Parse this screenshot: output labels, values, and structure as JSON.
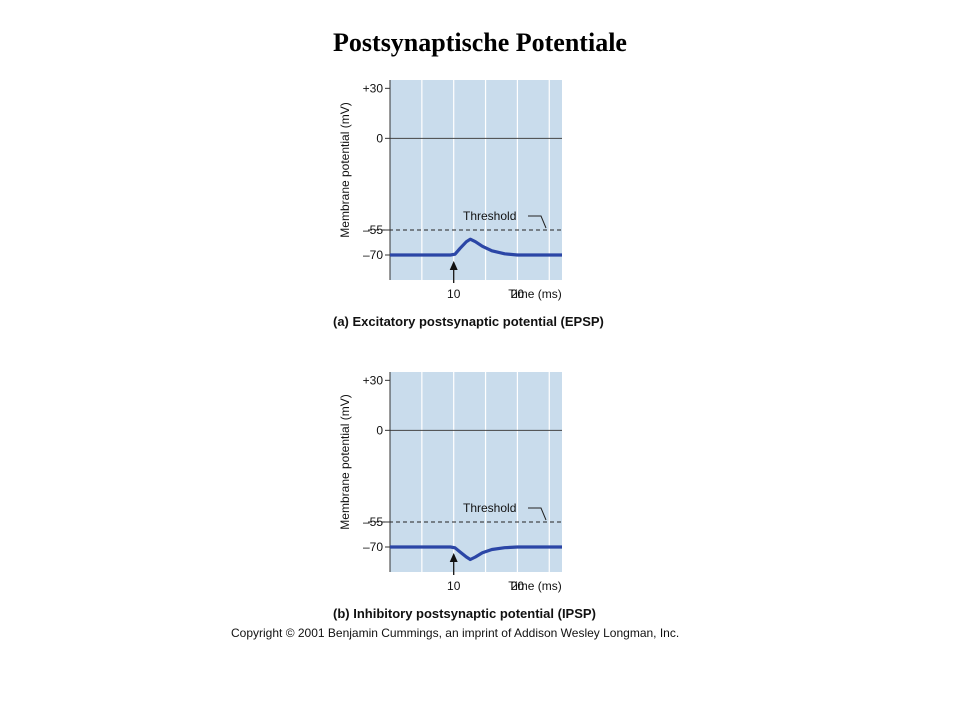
{
  "title": "Postsynaptische Potentiale",
  "copyright": "Copyright © 2001 Benjamin Cummings, an imprint of Addison Wesley Longman, Inc.",
  "colors": {
    "plot_background": "#c9dcec",
    "grid": "#ffffff",
    "trace": "#2b46a6"
  },
  "chart_data": [
    {
      "type": "line",
      "caption": "(a) Excitatory postsynaptic potential (EPSP)",
      "ylabel": "Membrane potential (mV)",
      "xlabel": "Time (ms)",
      "xlim": [
        0,
        27
      ],
      "ylim": [
        -85,
        35
      ],
      "yticks": [
        {
          "value": 30,
          "label": "+30"
        },
        {
          "value": 0,
          "label": "0"
        },
        {
          "value": -55,
          "label": "–55"
        },
        {
          "value": -70,
          "label": "–70"
        }
      ],
      "xticks": [
        {
          "value": 10,
          "label": "10"
        },
        {
          "value": 20,
          "label": "20"
        }
      ],
      "x_gridlines": [
        5,
        10,
        15,
        20,
        25
      ],
      "zero_line": 0,
      "threshold": {
        "value": -55,
        "label": "Threshold"
      },
      "stimulus_time": 10,
      "series": [
        {
          "x": [
            0,
            9.5,
            10.2,
            11,
            12,
            12.6,
            13.4,
            14.5,
            16,
            18,
            20,
            23,
            27
          ],
          "values": [
            -70,
            -70,
            -69.5,
            -66,
            -62,
            -60.5,
            -62,
            -64.8,
            -67.5,
            -69.3,
            -70,
            -70,
            -70
          ]
        }
      ]
    },
    {
      "type": "line",
      "caption": "(b) Inhibitory postsynaptic potential (IPSP)",
      "ylabel": "Membrane potential (mV)",
      "xlabel": "Time (ms)",
      "xlim": [
        0,
        27
      ],
      "ylim": [
        -85,
        35
      ],
      "yticks": [
        {
          "value": 30,
          "label": "+30"
        },
        {
          "value": 0,
          "label": "0"
        },
        {
          "value": -55,
          "label": "–55"
        },
        {
          "value": -70,
          "label": "–70"
        }
      ],
      "xticks": [
        {
          "value": 10,
          "label": "10"
        },
        {
          "value": 20,
          "label": "20"
        }
      ],
      "x_gridlines": [
        5,
        10,
        15,
        20,
        25
      ],
      "zero_line": 0,
      "threshold": {
        "value": -55,
        "label": "Threshold"
      },
      "stimulus_time": 10,
      "series": [
        {
          "x": [
            0,
            9.5,
            10.2,
            11,
            12,
            12.6,
            13.4,
            14.5,
            16,
            18,
            20,
            23,
            27
          ],
          "values": [
            -70,
            -70,
            -70.5,
            -73,
            -76,
            -77.5,
            -76,
            -73.5,
            -71.5,
            -70.4,
            -70,
            -70,
            -70
          ]
        }
      ]
    }
  ]
}
